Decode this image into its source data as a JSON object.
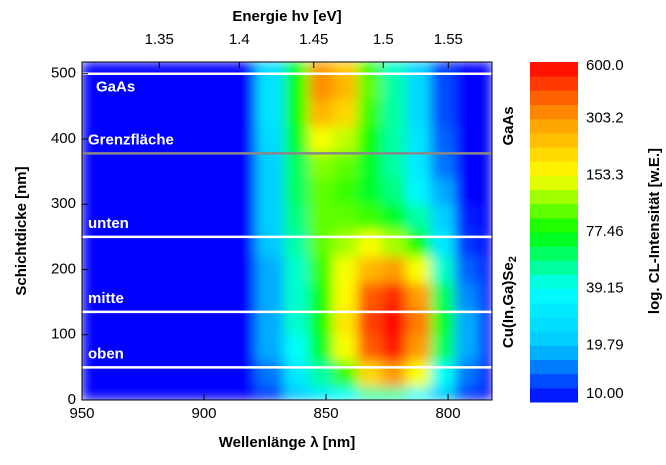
{
  "chart_data": {
    "type": "contour",
    "x_label": "Wellenlänge λ [nm]",
    "y_label": "Schichtdicke [nm]",
    "x2_label": "Energie hν [eV]",
    "colorbar_label": "log. CL-Intensität [w.E.]",
    "xlim": [
      950,
      782
    ],
    "xticks": [
      950,
      900,
      850,
      800
    ],
    "ylim": [
      0,
      518
    ],
    "yticks": [
      0,
      100,
      200,
      300,
      400,
      500
    ],
    "x2lim": [
      1.305,
      1.5855
    ],
    "x2_scale": "reciprocal",
    "x2ticks": [
      1.35,
      1.4,
      1.45,
      1.5,
      1.55
    ],
    "clim": [
      10,
      600
    ],
    "color_scale": "log",
    "cticks": [
      {
        "value": 10,
        "label": "10.00"
      },
      19.79,
      39.15,
      77.46,
      153.3,
      303.2,
      {
        "value": 600,
        "label": "600.0"
      }
    ],
    "colors": [
      "#0000ff",
      "#00c8ff",
      "#00ffff",
      "#00ff00",
      "#ffff00",
      "#ff9900",
      "#ff0000"
    ],
    "x": [
      950,
      885,
      872,
      862,
      852,
      842,
      832,
      822,
      812,
      802,
      792,
      782
    ],
    "y": [
      0,
      40,
      80,
      120,
      160,
      200,
      240,
      280,
      320,
      360,
      400,
      440,
      480,
      518
    ],
    "z": [
      [
        10,
        10,
        12,
        20,
        30,
        40,
        50,
        50,
        40,
        20,
        12,
        10
      ],
      [
        10,
        10,
        15,
        30,
        50,
        90,
        200,
        300,
        150,
        40,
        15,
        10
      ],
      [
        10,
        10,
        18,
        40,
        70,
        150,
        400,
        550,
        300,
        60,
        18,
        10
      ],
      [
        10,
        10,
        18,
        45,
        80,
        180,
        450,
        600,
        350,
        70,
        18,
        10
      ],
      [
        10,
        10,
        18,
        45,
        80,
        160,
        400,
        500,
        300,
        60,
        16,
        10
      ],
      [
        10,
        10,
        18,
        45,
        90,
        150,
        250,
        300,
        150,
        45,
        14,
        10
      ],
      [
        10,
        10,
        20,
        50,
        100,
        120,
        150,
        120,
        80,
        30,
        12,
        10
      ],
      [
        10,
        10,
        22,
        55,
        100,
        100,
        90,
        70,
        50,
        22,
        11,
        10
      ],
      [
        10,
        10,
        22,
        60,
        100,
        90,
        70,
        55,
        35,
        18,
        10,
        10
      ],
      [
        10,
        10,
        22,
        60,
        110,
        100,
        70,
        50,
        30,
        15,
        10,
        10
      ],
      [
        10,
        10,
        25,
        70,
        150,
        130,
        80,
        50,
        28,
        14,
        10,
        10
      ],
      [
        10,
        10,
        28,
        80,
        250,
        200,
        90,
        50,
        25,
        13,
        10,
        10
      ],
      [
        10,
        10,
        28,
        80,
        320,
        250,
        100,
        50,
        25,
        13,
        10,
        10
      ],
      [
        10,
        10,
        25,
        70,
        300,
        220,
        90,
        45,
        22,
        12,
        10,
        10
      ]
    ],
    "hlines": [
      {
        "value": 500,
        "label": "GaAs",
        "color": "#ffffff",
        "label_side": "below"
      },
      {
        "value": 378,
        "label": "Grenzfläche",
        "color": "#888888",
        "label_side": "above"
      },
      {
        "value": 250,
        "label": "unten",
        "color": "#ffffff",
        "label_side": "above"
      },
      {
        "value": 135,
        "label": "mitte",
        "color": "#ffffff",
        "label_side": "above"
      },
      {
        "value": 50,
        "label": "oben",
        "color": "#ffffff",
        "label_side": "above"
      }
    ],
    "region_labels": [
      {
        "text": "GaAs",
        "value": 420
      },
      {
        "text": "Cu(In,Ga)Se",
        "sub": "2",
        "value": 150
      }
    ]
  }
}
